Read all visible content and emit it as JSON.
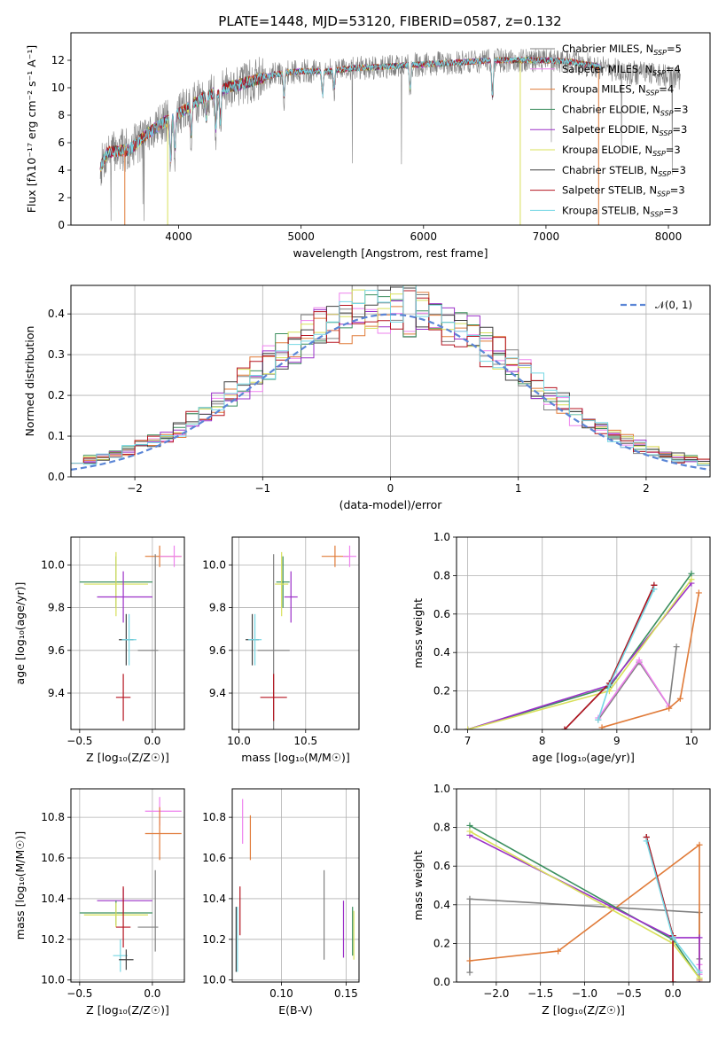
{
  "title": "PLATE=1448, MJD=53120, FIBERID=0587, z=0.132",
  "colors": {
    "Chabrier MILES": "#808080",
    "Salpeter MILES": "#ee82ee",
    "Kroupa MILES": "#e07b39",
    "Chabrier ELODIE": "#3b8f5f",
    "Salpeter ELODIE": "#9b30c8",
    "Kroupa ELODIE": "#d8e05a",
    "Chabrier STELIB": "#404040",
    "Salpeter STELIB": "#b51420",
    "Kroupa STELIB": "#76d7e4",
    "gauss": "#5b86d6",
    "grid": "#b0b0b0"
  },
  "legend_top": [
    {
      "label": "Chabrier MILES, N",
      "sub": "SSP",
      "eq": "=5",
      "color": "#808080"
    },
    {
      "label": "Salpeter MILES, N",
      "sub": "SSP",
      "eq": "=4",
      "color": "#ee82ee"
    },
    {
      "label": "Kroupa MILES, N",
      "sub": "SSP",
      "eq": "=4",
      "color": "#e07b39"
    },
    {
      "label": "Chabrier ELODIE, N",
      "sub": "SSP",
      "eq": "=3",
      "color": "#3b8f5f"
    },
    {
      "label": "Salpeter ELODIE, N",
      "sub": "SSP",
      "eq": "=3",
      "color": "#9b30c8"
    },
    {
      "label": "Kroupa ELODIE, N",
      "sub": "SSP",
      "eq": "=3",
      "color": "#d8e05a"
    },
    {
      "label": "Chabrier STELIB, N",
      "sub": "SSP",
      "eq": "=3",
      "color": "#404040"
    },
    {
      "label": "Salpeter STELIB, N",
      "sub": "SSP",
      "eq": "=3",
      "color": "#b51420"
    },
    {
      "label": "Kroupa STELIB, N",
      "sub": "SSP",
      "eq": "=3",
      "color": "#76d7e4"
    }
  ],
  "legend_hist": "𝒩(0, 1)",
  "chart_data": [
    {
      "id": "spectrum",
      "type": "line",
      "xlabel": "wavelength [Angstrom, rest frame]",
      "ylabel": "Flux [fλ10⁻¹⁷ erg cm⁻² s⁻¹ A⁻¹]",
      "xlim": [
        3120,
        8340
      ],
      "ylim": [
        0,
        14
      ],
      "xticks": [
        4000,
        5000,
        6000,
        7000,
        8000
      ],
      "yticks": [
        0,
        2,
        4,
        6,
        8,
        10,
        12
      ],
      "continuum": [
        [
          3360,
          4.2
        ],
        [
          3420,
          5.3
        ],
        [
          3600,
          5.5
        ],
        [
          3750,
          6.7
        ],
        [
          3900,
          7.6
        ],
        [
          4050,
          8.4
        ],
        [
          4200,
          9.3
        ],
        [
          4400,
          10.0
        ],
        [
          4600,
          10.5
        ],
        [
          4800,
          11.0
        ],
        [
          5000,
          11.2
        ],
        [
          5200,
          11.2
        ],
        [
          5400,
          11.4
        ],
        [
          5600,
          11.5
        ],
        [
          5800,
          11.6
        ],
        [
          6000,
          11.7
        ],
        [
          6200,
          11.8
        ],
        [
          6400,
          11.9
        ],
        [
          6600,
          12.0
        ],
        [
          6800,
          12.0
        ],
        [
          7000,
          12.0
        ],
        [
          7200,
          11.9
        ],
        [
          7400,
          11.6
        ],
        [
          7600,
          11.2
        ],
        [
          7800,
          11.0
        ],
        [
          8000,
          10.8
        ],
        [
          8100,
          10.7
        ]
      ],
      "model_range": [
        3360,
        7450
      ],
      "absorption": [
        [
          3934,
          3.5
        ],
        [
          3969,
          3.0
        ],
        [
          4102,
          2.5
        ],
        [
          4227,
          2.0
        ],
        [
          4304,
          3.0
        ],
        [
          4340,
          2.5
        ],
        [
          4861,
          2.0
        ],
        [
          5175,
          2.0
        ],
        [
          5270,
          1.5
        ],
        [
          5890,
          2.0
        ],
        [
          6563,
          3.0
        ]
      ]
    },
    {
      "id": "residual_hist",
      "type": "step",
      "xlabel": "(data-model)/error",
      "ylabel": "Normed distribution",
      "xlim": [
        -2.5,
        2.5
      ],
      "ylim": [
        0,
        0.47
      ],
      "xticks": [
        -2,
        -1,
        0,
        1,
        2
      ],
      "yticks": [
        0.0,
        0.1,
        0.2,
        0.3,
        0.4
      ],
      "bin_width": 0.1
    },
    {
      "id": "age_vs_Z",
      "type": "errorbar",
      "xlabel": "Z [log₁₀(Z/Z☉)]",
      "ylabel": "age  [log₁₀(age/yr)]",
      "xlim": [
        -0.56,
        0.22
      ],
      "ylim": [
        9.23,
        10.13
      ],
      "xticks": [
        -0.5,
        0.0
      ],
      "yticks": [
        9.4,
        9.6,
        9.8,
        10.0
      ],
      "points": [
        {
          "model": "Kroupa MILES",
          "x": 0.05,
          "xerr": [
            0.1,
            0.15
          ],
          "y": 10.04,
          "yerr": [
            0.05,
            0.05
          ]
        },
        {
          "model": "Salpeter MILES",
          "x": 0.15,
          "xerr": [
            0.1,
            0.05
          ],
          "y": 10.04,
          "yerr": [
            0.05,
            0.05
          ]
        },
        {
          "model": "Chabrier ELODIE",
          "x": -0.25,
          "xerr": [
            0.25,
            0.25
          ],
          "y": 9.92,
          "yerr": [
            0.12,
            0.12
          ]
        },
        {
          "model": "Kroupa ELODIE",
          "x": -0.25,
          "xerr": [
            0.22,
            0.22
          ],
          "y": 9.91,
          "yerr": [
            0.15,
            0.15
          ]
        },
        {
          "model": "Salpeter ELODIE",
          "x": -0.2,
          "xerr": [
            0.18,
            0.2
          ],
          "y": 9.85,
          "yerr": [
            0.12,
            0.12
          ]
        },
        {
          "model": "Chabrier STELIB",
          "x": -0.18,
          "xerr": [
            0.05,
            0.05
          ],
          "y": 9.65,
          "yerr": [
            0.12,
            0.12
          ]
        },
        {
          "model": "Kroupa STELIB",
          "x": -0.16,
          "xerr": [
            0.05,
            0.05
          ],
          "y": 9.65,
          "yerr": [
            0.12,
            0.12
          ]
        },
        {
          "model": "Chabrier MILES",
          "x": 0.02,
          "xerr": [
            0.12,
            0.02
          ],
          "y": 9.6,
          "yerr": [
            0.45,
            0.45
          ]
        },
        {
          "model": "Salpeter STELIB",
          "x": -0.2,
          "xerr": [
            0.05,
            0.05
          ],
          "y": 9.38,
          "yerr": [
            0.11,
            0.11
          ]
        }
      ]
    },
    {
      "id": "age_vs_mass",
      "type": "errorbar",
      "xlabel": "mass [log₁₀(M/M☉)]",
      "ylabel": "",
      "xlim": [
        9.95,
        10.9
      ],
      "ylim": [
        9.23,
        10.13
      ],
      "xticks": [
        10.0,
        10.5
      ],
      "yticks": [
        9.4,
        9.6,
        9.8,
        10.0
      ],
      "points": [
        {
          "model": "Kroupa MILES",
          "x": 10.72,
          "xerr": [
            0.1,
            0.1
          ],
          "y": 10.04,
          "yerr": [
            0.05,
            0.05
          ]
        },
        {
          "model": "Salpeter MILES",
          "x": 10.83,
          "xerr": [
            0.05,
            0.05
          ],
          "y": 10.04,
          "yerr": [
            0.05,
            0.05
          ]
        },
        {
          "model": "Chabrier ELODIE",
          "x": 10.33,
          "xerr": [
            0.05,
            0.05
          ],
          "y": 9.92,
          "yerr": [
            0.12,
            0.12
          ]
        },
        {
          "model": "Kroupa ELODIE",
          "x": 10.32,
          "xerr": [
            0.05,
            0.05
          ],
          "y": 9.91,
          "yerr": [
            0.15,
            0.15
          ]
        },
        {
          "model": "Salpeter ELODIE",
          "x": 10.39,
          "xerr": [
            0.05,
            0.05
          ],
          "y": 9.85,
          "yerr": [
            0.12,
            0.12
          ]
        },
        {
          "model": "Chabrier STELIB",
          "x": 10.1,
          "xerr": [
            0.05,
            0.05
          ],
          "y": 9.65,
          "yerr": [
            0.12,
            0.12
          ]
        },
        {
          "model": "Kroupa STELIB",
          "x": 10.12,
          "xerr": [
            0.05,
            0.05
          ],
          "y": 9.65,
          "yerr": [
            0.12,
            0.12
          ]
        },
        {
          "model": "Chabrier MILES",
          "x": 10.26,
          "xerr": [
            0.12,
            0.12
          ],
          "y": 9.6,
          "yerr": [
            0.45,
            0.45
          ]
        },
        {
          "model": "Salpeter STELIB",
          "x": 10.26,
          "xerr": [
            0.1,
            0.1
          ],
          "y": 9.38,
          "yerr": [
            0.11,
            0.11
          ]
        }
      ]
    },
    {
      "id": "mass_weight_vs_age",
      "type": "line",
      "xlabel": "age  [log₁₀(age/yr)]",
      "ylabel": "mass weight",
      "xlim": [
        6.85,
        10.25
      ],
      "ylim": [
        0,
        1
      ],
      "xticks": [
        7,
        8,
        9,
        10
      ],
      "yticks": [
        0.0,
        0.2,
        0.4,
        0.6,
        0.8,
        1.0
      ],
      "series": [
        {
          "model": "Chabrier MILES",
          "x": [
            8.75,
            9.3,
            9.7,
            9.8
          ],
          "y": [
            0.05,
            0.35,
            0.12,
            0.43
          ]
        },
        {
          "model": "Salpeter MILES",
          "x": [
            8.75,
            9.3,
            9.7
          ],
          "y": [
            0.06,
            0.36,
            0.12
          ]
        },
        {
          "model": "Kroupa MILES",
          "x": [
            8.8,
            9.7,
            9.85,
            10.1
          ],
          "y": [
            0.01,
            0.11,
            0.16,
            0.71
          ]
        },
        {
          "model": "Chabrier ELODIE",
          "x": [
            7.0,
            8.9,
            10.0
          ],
          "y": [
            0.0,
            0.22,
            0.81
          ]
        },
        {
          "model": "Salpeter ELODIE",
          "x": [
            7.0,
            8.9,
            10.0
          ],
          "y": [
            0.0,
            0.23,
            0.76
          ]
        },
        {
          "model": "Kroupa ELODIE",
          "x": [
            7.0,
            8.9,
            10.0
          ],
          "y": [
            0.0,
            0.2,
            0.78
          ]
        },
        {
          "model": "Chabrier STELIB",
          "x": [
            8.3,
            8.9,
            9.5
          ],
          "y": [
            0.0,
            0.24,
            0.75
          ]
        },
        {
          "model": "Salpeter STELIB",
          "x": [
            8.3,
            8.9,
            9.5
          ],
          "y": [
            0.0,
            0.24,
            0.75
          ]
        },
        {
          "model": "Kroupa STELIB",
          "x": [
            8.75,
            8.9,
            9.5
          ],
          "y": [
            0.05,
            0.23,
            0.73
          ]
        }
      ]
    },
    {
      "id": "mass_vs_Z",
      "type": "errorbar",
      "xlabel": "Z [log₁₀(Z/Z☉)]",
      "ylabel": "mass [log₁₀(M/M☉)]",
      "xlim": [
        -0.56,
        0.22
      ],
      "ylim": [
        9.99,
        10.94
      ],
      "xticks": [
        -0.5,
        0.0
      ],
      "yticks": [
        10.0,
        10.2,
        10.4,
        10.6,
        10.8
      ],
      "points": [
        {
          "model": "Salpeter MILES",
          "x": 0.05,
          "xerr": [
            0.1,
            0.15
          ],
          "y": 10.83,
          "yerr": [
            0.07,
            0.07
          ]
        },
        {
          "model": "Kroupa MILES",
          "x": 0.05,
          "xerr": [
            0.1,
            0.15
          ],
          "y": 10.72,
          "yerr": [
            0.13,
            0.13
          ]
        },
        {
          "model": "Salpeter ELODIE",
          "x": -0.2,
          "xerr": [
            0.18,
            0.2
          ],
          "y": 10.39,
          "yerr": [
            0.06,
            0.06
          ]
        },
        {
          "model": "Chabrier ELODIE",
          "x": -0.25,
          "xerr": [
            0.25,
            0.25
          ],
          "y": 10.33,
          "yerr": [
            0.06,
            0.06
          ]
        },
        {
          "model": "Kroupa ELODIE",
          "x": -0.25,
          "xerr": [
            0.22,
            0.22
          ],
          "y": 10.32,
          "yerr": [
            0.06,
            0.06
          ]
        },
        {
          "model": "Chabrier MILES",
          "x": 0.02,
          "xerr": [
            0.12,
            0.02
          ],
          "y": 10.26,
          "yerr": [
            0.12,
            0.28
          ]
        },
        {
          "model": "Salpeter STELIB",
          "x": -0.2,
          "xerr": [
            0.05,
            0.05
          ],
          "y": 10.26,
          "yerr": [
            0.1,
            0.2
          ]
        },
        {
          "model": "Kroupa STELIB",
          "x": -0.22,
          "xerr": [
            0.05,
            0.05
          ],
          "y": 10.12,
          "yerr": [
            0.08,
            0.08
          ]
        },
        {
          "model": "Chabrier STELIB",
          "x": -0.18,
          "xerr": [
            0.05,
            0.05
          ],
          "y": 10.1,
          "yerr": [
            0.05,
            0.05
          ]
        }
      ]
    },
    {
      "id": "mass_vs_ebv",
      "type": "errorbar",
      "xlabel": "E(B-V)",
      "ylabel": "",
      "xlim": [
        0.062,
        0.16
      ],
      "ylim": [
        9.99,
        10.94
      ],
      "xticks": [
        0.1,
        0.15
      ],
      "yticks": [
        10.0,
        10.2,
        10.4,
        10.6,
        10.8
      ],
      "points": [
        {
          "model": "Salpeter MILES",
          "x": 0.07,
          "y": 10.78,
          "yerr": [
            0.11,
            0.11
          ]
        },
        {
          "model": "Kroupa MILES",
          "x": 0.076,
          "y": 10.7,
          "yerr": [
            0.11,
            0.11
          ]
        },
        {
          "model": "Salpeter STELIB",
          "x": 0.068,
          "y": 10.34,
          "yerr": [
            0.12,
            0.12
          ]
        },
        {
          "model": "Chabrier STELIB",
          "x": 0.065,
          "y": 10.2,
          "yerr": [
            0.16,
            0.16
          ]
        },
        {
          "model": "Kroupa STELIB",
          "x": 0.066,
          "y": 10.2,
          "yerr": [
            0.16,
            0.16
          ]
        },
        {
          "model": "Chabrier MILES",
          "x": 0.133,
          "y": 10.32,
          "yerr": [
            0.22,
            0.22
          ]
        },
        {
          "model": "Salpeter ELODIE",
          "x": 0.148,
          "y": 10.25,
          "yerr": [
            0.14,
            0.14
          ]
        },
        {
          "model": "Chabrier ELODIE",
          "x": 0.155,
          "y": 10.24,
          "yerr": [
            0.12,
            0.12
          ]
        },
        {
          "model": "Kroupa ELODIE",
          "x": 0.156,
          "y": 10.22,
          "yerr": [
            0.12,
            0.12
          ]
        }
      ]
    },
    {
      "id": "mass_weight_vs_Z",
      "type": "line",
      "xlabel": "Z [log₁₀(Z/Z☉)]",
      "ylabel": "mass weight",
      "xlim": [
        -2.45,
        0.42
      ],
      "ylim": [
        0,
        1
      ],
      "xticks": [
        -2.0,
        -1.5,
        -1.0,
        -0.5,
        0.0
      ],
      "yticks": [
        0.0,
        0.2,
        0.4,
        0.6,
        0.8,
        1.0
      ],
      "series": [
        {
          "model": "Chabrier MILES",
          "x": [
            -2.3,
            -2.3,
            0.3,
            0.3
          ],
          "y": [
            0.05,
            0.43,
            0.36,
            0.12
          ]
        },
        {
          "model": "Salpeter MILES",
          "x": [
            0.3,
            0.3,
            0.3
          ],
          "y": [
            0.09,
            0.06,
            0.04
          ]
        },
        {
          "model": "Kroupa MILES",
          "x": [
            -2.3,
            -1.3,
            0.3,
            0.3
          ],
          "y": [
            0.11,
            0.16,
            0.71,
            0.01
          ]
        },
        {
          "model": "Chabrier ELODIE",
          "x": [
            -2.3,
            0.0,
            0.3
          ],
          "y": [
            0.81,
            0.22,
            0.02
          ]
        },
        {
          "model": "Salpeter ELODIE",
          "x": [
            -2.3,
            0.0,
            0.3,
            0.3
          ],
          "y": [
            0.76,
            0.23,
            0.23,
            0.0
          ]
        },
        {
          "model": "Kroupa ELODIE",
          "x": [
            -2.3,
            0.0,
            0.3
          ],
          "y": [
            0.78,
            0.2,
            0.02
          ]
        },
        {
          "model": "Chabrier STELIB",
          "x": [
            -0.3,
            0.0,
            0.0
          ],
          "y": [
            0.75,
            0.24,
            0.0
          ]
        },
        {
          "model": "Salpeter STELIB",
          "x": [
            -0.3,
            0.0,
            0.0
          ],
          "y": [
            0.75,
            0.24,
            0.0
          ]
        },
        {
          "model": "Kroupa STELIB",
          "x": [
            -0.3,
            0.0,
            0.3
          ],
          "y": [
            0.73,
            0.23,
            0.05
          ]
        }
      ]
    }
  ]
}
